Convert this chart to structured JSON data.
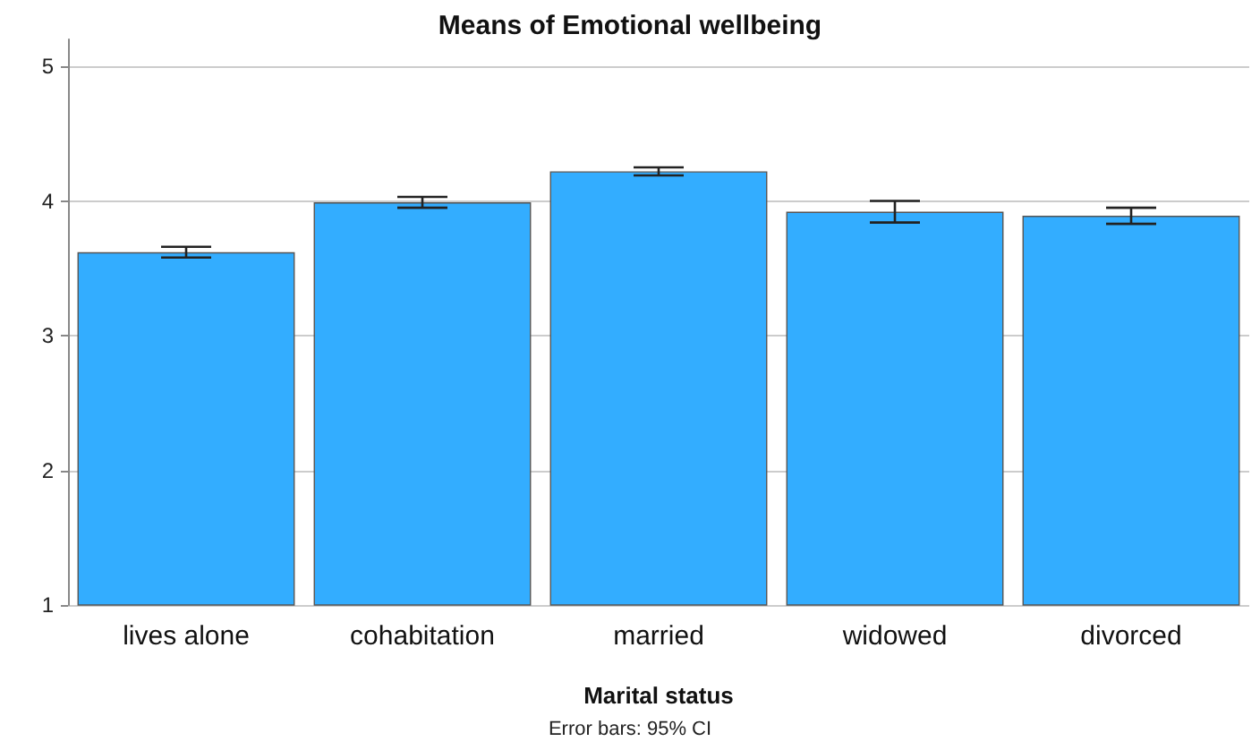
{
  "chart_data": {
    "type": "bar",
    "title": "Means of Emotional wellbeing",
    "xlabel": "Marital status",
    "categories": [
      "lives alone",
      "cohabitation",
      "married",
      "widowed",
      "divorced"
    ],
    "values": [
      3.62,
      3.99,
      4.22,
      3.92,
      3.89
    ],
    "errors": [
      0.04,
      0.04,
      0.03,
      0.08,
      0.06
    ],
    "color": "#33adff",
    "ylim": [
      1,
      5.2
    ],
    "yticks": [
      1,
      2,
      3,
      4,
      5
    ],
    "grid": "y",
    "annotations": [
      "Error bars: 95% CI"
    ]
  }
}
